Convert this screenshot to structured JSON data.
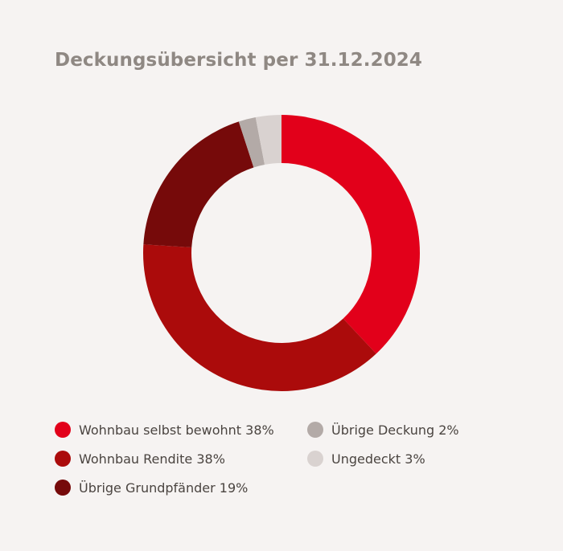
{
  "title": "Deckungsübersicht per 31.12.2024",
  "chart_data": {
    "type": "pie",
    "variant": "donut",
    "title": "Deckungsübersicht per 31.12.2024",
    "slices": [
      {
        "label": "Wohnbau selbst bewohnt",
        "value": 38,
        "color": "#e2001a"
      },
      {
        "label": "Wohnbau Rendite",
        "value": 38,
        "color": "#ab0b0b"
      },
      {
        "label": "Übrige Grundpfänder",
        "value": 19,
        "color": "#760a0a"
      },
      {
        "label": "Übrige Deckung",
        "value": 2,
        "color": "#b3aaa7"
      },
      {
        "label": "Ungedeckt",
        "value": 3,
        "color": "#d9d2d0"
      }
    ],
    "legend": [
      "Wohnbau selbst bewohnt 38%",
      "Wohnbau Rendite 38%",
      "Übrige Grundpfänder 19%",
      "Übrige Deckung 2%",
      "Ungedeckt 3%"
    ],
    "legend_placement": "bottom",
    "start_angle": "top",
    "direction": "clockwise"
  }
}
